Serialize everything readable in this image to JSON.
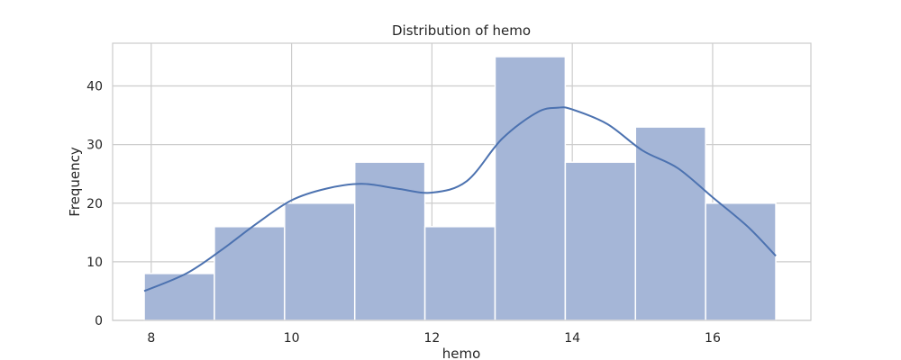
{
  "chart_data": {
    "type": "bar",
    "title": "Distribution of hemo",
    "xlabel": "hemo",
    "ylabel": "Frequency",
    "xlim": [
      7.45,
      17.4
    ],
    "ylim": [
      0,
      47.3
    ],
    "xticks": [
      8,
      10,
      12,
      14,
      16
    ],
    "yticks": [
      0,
      10,
      20,
      30,
      40
    ],
    "grid": true,
    "bins": [
      {
        "x0": 7.9,
        "x1": 8.9,
        "count": 8
      },
      {
        "x0": 8.9,
        "x1": 9.9,
        "count": 16
      },
      {
        "x0": 9.9,
        "x1": 10.9,
        "count": 20
      },
      {
        "x0": 10.9,
        "x1": 11.9,
        "count": 27
      },
      {
        "x0": 11.9,
        "x1": 12.9,
        "count": 16
      },
      {
        "x0": 12.9,
        "x1": 13.9,
        "count": 45
      },
      {
        "x0": 13.9,
        "x1": 14.9,
        "count": 27
      },
      {
        "x0": 14.9,
        "x1": 15.9,
        "count": 33
      },
      {
        "x0": 15.9,
        "x1": 16.9,
        "count": 20
      }
    ],
    "kde": {
      "x": [
        7.9,
        8.5,
        9.0,
        9.5,
        10.0,
        10.5,
        11.0,
        11.5,
        12.0,
        12.5,
        13.0,
        13.5,
        13.8,
        14.0,
        14.5,
        15.0,
        15.5,
        16.0,
        16.5,
        16.9
      ],
      "y": [
        5,
        8,
        12,
        16.5,
        20.5,
        22.5,
        23.3,
        22.5,
        21.8,
        23.8,
        31,
        35.5,
        36.3,
        36,
        33.5,
        29,
        26,
        21,
        16,
        11
      ]
    },
    "colors": {
      "bar_fill": "#a5b6d7",
      "bar_edge": "#ffffff",
      "line": "#4c72b0",
      "grid": "#cccccc",
      "frame": "#cccccc"
    }
  }
}
